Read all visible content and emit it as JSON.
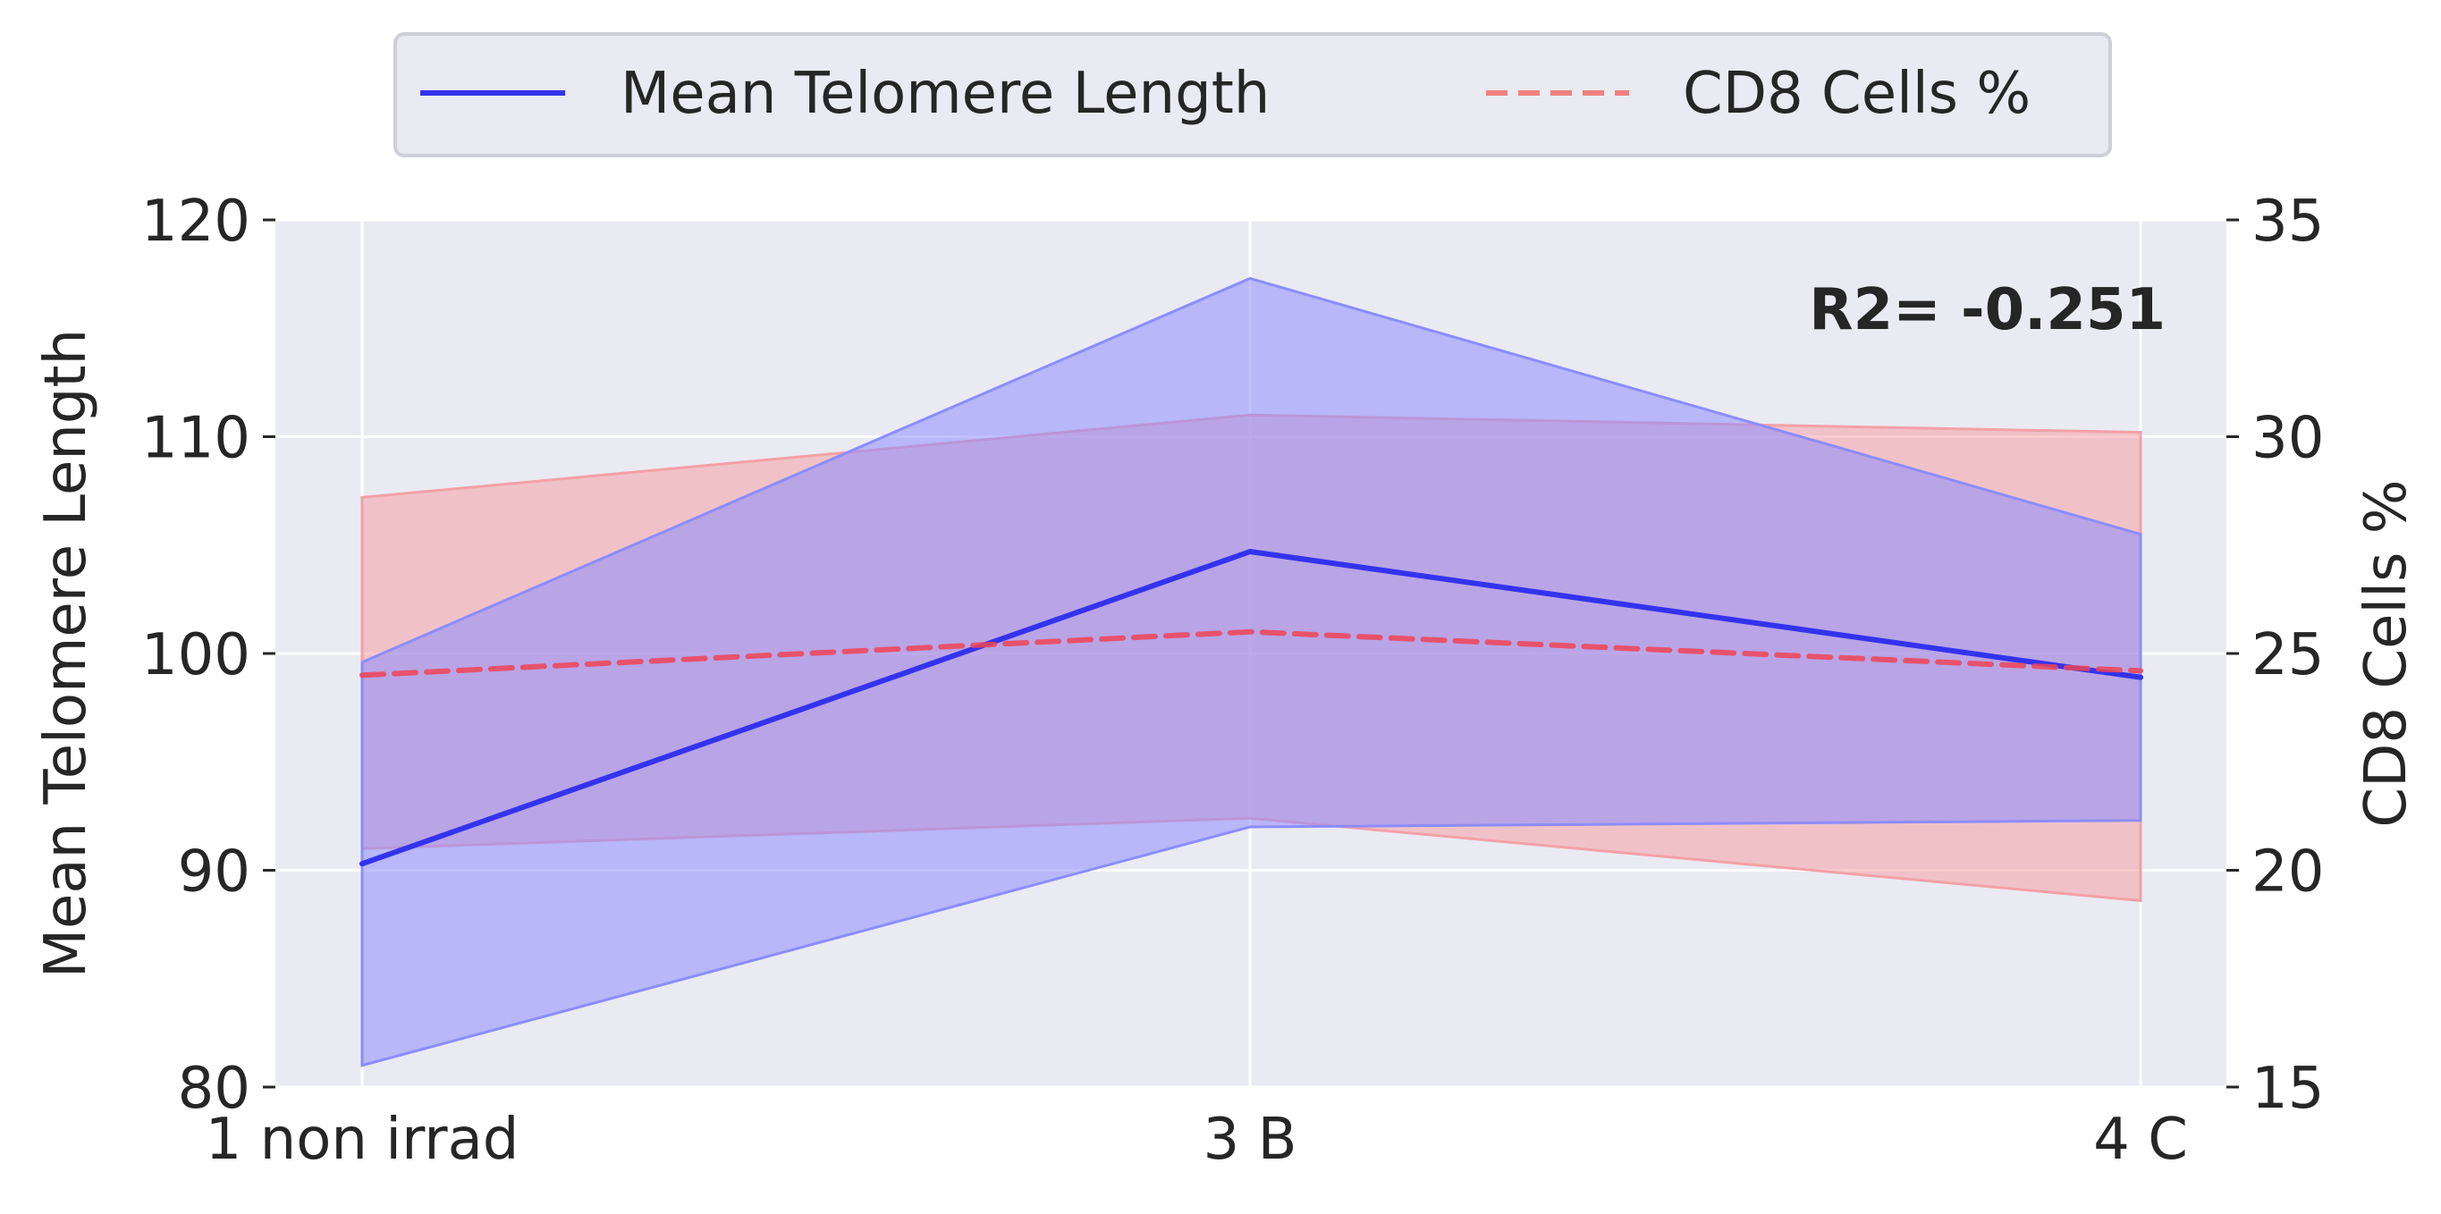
{
  "chart_data": {
    "type": "line",
    "categories": [
      "1 non irrad",
      "3 B",
      "4 C"
    ],
    "series": [
      {
        "name": "Mean Telomere Length",
        "axis": "left",
        "values": [
          90.3,
          104.7,
          98.9
        ],
        "band_lower": [
          81.0,
          92.0,
          92.3
        ],
        "band_upper": [
          99.6,
          117.3,
          105.5
        ],
        "color": "#3333ee",
        "band_color": "#8c8cff",
        "style": "solid"
      },
      {
        "name": "CD8 Cells %",
        "axis": "right",
        "values": [
          24.5,
          25.5,
          24.6
        ],
        "band_lower": [
          20.5,
          21.2,
          19.3
        ],
        "band_upper": [
          28.6,
          30.5,
          30.1
        ],
        "color": "#ee4455",
        "band_color": "#f4a0a6",
        "style": "dashed"
      }
    ],
    "ylabel_left": "Mean Telomere Length",
    "ylabel_right": "CD8 Cells %",
    "ylim_left": [
      80,
      120
    ],
    "ylim_right": [
      15,
      35
    ],
    "yticks_left": [
      "80",
      "90",
      "100",
      "110",
      "120"
    ],
    "yticks_right": [
      "15",
      "20",
      "25",
      "30",
      "35"
    ],
    "annotation": "R2= -0.251",
    "legend_position": "top-center",
    "grid": true,
    "background": "#eaeaf2"
  }
}
